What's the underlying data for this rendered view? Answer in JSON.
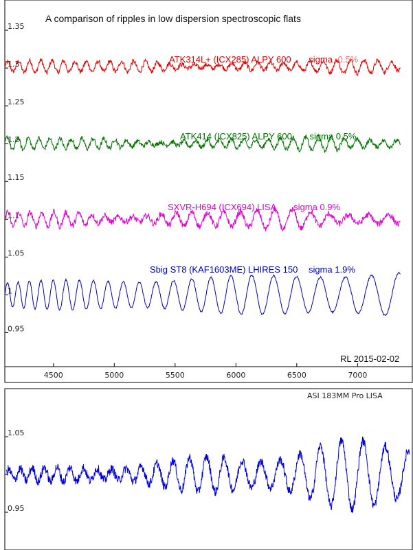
{
  "chart_data": [
    {
      "type": "line",
      "title": "A comparison of ripples in low dispersion spectroscopic flats",
      "annotation": "RL 2015-02-02",
      "xlim": [
        4100,
        7450
      ],
      "ylim": [
        0.905,
        1.39
      ],
      "x_ticks": [
        "4500",
        "5000",
        "5500",
        "6000",
        "6500",
        "7000"
      ],
      "x_tick_values": [
        4500,
        5000,
        5500,
        6000,
        6500,
        7000
      ],
      "y_ticks": [
        "0.95",
        "1",
        "1.05",
        "1.1",
        "1.15",
        "1.2",
        "1.25",
        "1.3",
        "1.35"
      ],
      "y_tick_values": [
        0.95,
        1.0,
        1.05,
        1.1,
        1.15,
        1.2,
        1.25,
        1.3,
        1.35
      ],
      "series": [
        {
          "label_parts": [
            "ATK314L+ (ICX285) ALPY 600",
            "sigma",
            "0.5%"
          ],
          "color": "#e00000",
          "x_start": 4100,
          "x_end": 7350,
          "baseline": 1.302,
          "amplitude": 0.008,
          "period_start": 90,
          "period_end": 115,
          "noise": 0.003
        },
        {
          "label_parts": [
            "ATK414  (ICX825)  ALPY 600",
            "sigma  0.5%"
          ],
          "color": "#007000",
          "x_start": 4100,
          "x_end": 7350,
          "baseline": 1.2,
          "amplitude": 0.008,
          "period_start": 85,
          "period_end": 110,
          "noise": 0.003
        },
        {
          "label_parts": [
            "SXVR-H694  (ICX694)  LISA",
            "sigma 0.9%"
          ],
          "color": "#e000d0",
          "x_start": 4100,
          "x_end": 7350,
          "baseline": 1.1,
          "amplitude": 0.012,
          "period_start": 90,
          "period_end": 170,
          "noise": 0.004
        },
        {
          "label_parts": [
            "Sbig ST8  (KAF1603ME)  LHIRES 150",
            "sigma 1.9%"
          ],
          "color": "#0000b0",
          "x_start": 4100,
          "x_end": 7350,
          "baseline": 1.0,
          "amplitude": 0.028,
          "period_start": 85,
          "period_end": 230,
          "noise": 0.001
        }
      ]
    },
    {
      "type": "line",
      "title": "",
      "label": "ASI 183MM Pro   LISA",
      "ylim": [
        0.9,
        1.1
      ],
      "y_ticks": [
        "0.95",
        "1",
        "1.05"
      ],
      "y_tick_values": [
        0.95,
        1.0,
        1.05
      ],
      "series": [
        {
          "color": "#0000dd",
          "points": 1200,
          "baseline": 1.0,
          "amplitude_start": 0.008,
          "amplitude_end": 0.055,
          "noise": 0.006
        }
      ]
    }
  ]
}
